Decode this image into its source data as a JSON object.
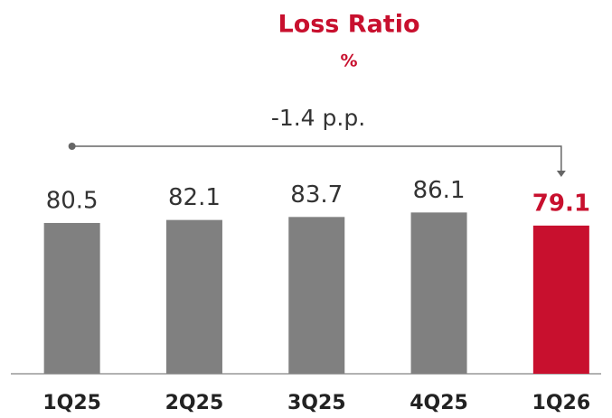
{
  "chart_data": {
    "type": "bar",
    "title": "Loss Ratio",
    "subtitle": "%",
    "annotation": "-1.4 p.p.",
    "categories": [
      "1Q25",
      "2Q25",
      "3Q25",
      "4Q25",
      "1Q26"
    ],
    "values": [
      80.5,
      82.1,
      83.7,
      86.1,
      79.1
    ],
    "colors": [
      "#808080",
      "#808080",
      "#808080",
      "#808080",
      "#c8102e"
    ],
    "ylim": [
      0,
      100
    ]
  }
}
